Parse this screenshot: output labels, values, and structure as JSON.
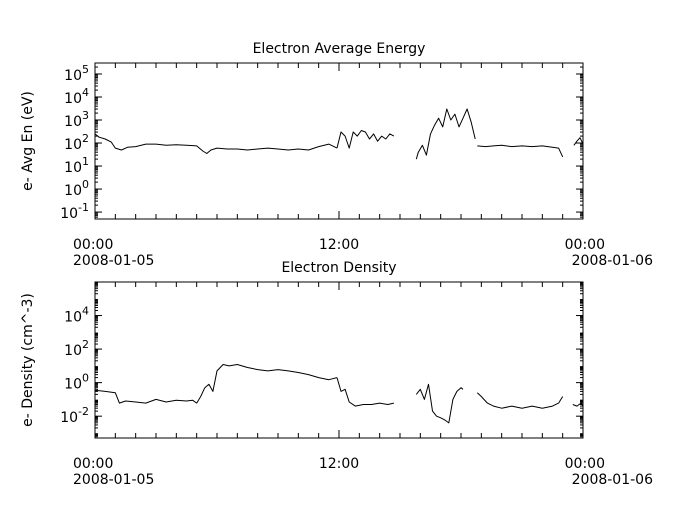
{
  "chart_data": [
    {
      "type": "line",
      "title": "Electron Average Energy",
      "ylabel": "e- Avg En (eV)",
      "yscale": "log",
      "ylim": [
        0.05,
        300000
      ],
      "y_ticks": [
        {
          "value": 0.1,
          "base": "10",
          "exp": "-1"
        },
        {
          "value": 1,
          "base": "10",
          "exp": "0"
        },
        {
          "value": 10,
          "base": "10",
          "exp": "1"
        },
        {
          "value": 100,
          "base": "10",
          "exp": "2"
        },
        {
          "value": 1000,
          "base": "10",
          "exp": "3"
        },
        {
          "value": 10000,
          "base": "10",
          "exp": "4"
        },
        {
          "value": 100000,
          "base": "10",
          "exp": "5"
        }
      ],
      "xlim": [
        0,
        24
      ],
      "x_ticks": [
        {
          "value": 0,
          "time": "00:00",
          "date": "2008-01-05"
        },
        {
          "value": 12,
          "time": "12:00",
          "date": ""
        },
        {
          "value": 24,
          "time": "00:00",
          "date": "2008-01-06"
        }
      ],
      "series": [
        {
          "x": [
            0,
            0.2,
            0.5,
            0.8,
            1.0,
            1.3,
            1.6,
            2.0,
            2.5,
            3.0,
            3.5,
            4.0,
            4.5,
            5.0,
            5.3,
            5.5,
            5.7,
            6.0,
            6.5,
            7.0,
            7.5,
            8.0,
            8.5,
            9.0,
            9.5,
            10.0,
            10.5,
            11.0,
            11.5,
            11.9
          ],
          "y": [
            250,
            180,
            150,
            110,
            60,
            50,
            65,
            70,
            90,
            90,
            80,
            85,
            80,
            75,
            45,
            35,
            50,
            60,
            55,
            55,
            50,
            55,
            60,
            55,
            50,
            55,
            50,
            70,
            90,
            60
          ]
        },
        {
          "x": [
            11.9,
            12.1,
            12.3,
            12.5,
            12.7,
            12.9,
            13.1,
            13.3,
            13.5,
            13.7,
            13.9,
            14.1,
            14.3,
            14.5,
            14.7
          ],
          "y": [
            60,
            300,
            200,
            60,
            300,
            200,
            350,
            300,
            150,
            250,
            120,
            200,
            150,
            250,
            200
          ]
        },
        {
          "x": [
            15.8,
            15.9,
            16.1,
            16.3,
            16.5,
            16.7,
            16.9,
            17.1,
            17.3,
            17.5,
            17.7,
            17.9,
            18.1,
            18.3,
            18.5,
            18.7
          ],
          "y": [
            20,
            40,
            80,
            30,
            250,
            600,
            1200,
            500,
            3000,
            1000,
            1800,
            500,
            1200,
            3000,
            800,
            150
          ]
        },
        {
          "x": [
            18.8,
            19.2,
            19.6,
            20.0,
            20.5,
            21.0,
            21.5,
            22.0,
            22.5,
            22.8,
            23.0
          ],
          "y": [
            75,
            70,
            75,
            80,
            70,
            75,
            70,
            75,
            65,
            60,
            25
          ]
        },
        {
          "x": [
            23.55,
            23.7,
            23.85,
            24.0
          ],
          "y": [
            80,
            120,
            170,
            90
          ]
        }
      ]
    },
    {
      "type": "line",
      "title": "Electron Density",
      "ylabel": "e- Density (cm^-3)",
      "yscale": "log",
      "ylim": [
        0.0005,
        1000000
      ],
      "y_ticks": [
        {
          "value": 0.01,
          "base": "10",
          "exp": "-2"
        },
        {
          "value": 1,
          "base": "10",
          "exp": "0"
        },
        {
          "value": 100,
          "base": "10",
          "exp": "2"
        },
        {
          "value": 10000,
          "base": "10",
          "exp": "4"
        }
      ],
      "xlim": [
        0,
        24
      ],
      "x_ticks": [
        {
          "value": 0,
          "time": "00:00",
          "date": "2008-01-05"
        },
        {
          "value": 12,
          "time": "12:00",
          "date": ""
        },
        {
          "value": 24,
          "time": "00:00",
          "date": "2008-01-06"
        }
      ],
      "series": [
        {
          "x": [
            0,
            0.5,
            1.0,
            1.2,
            1.5,
            2.0,
            2.5,
            3.0,
            3.5,
            4.0,
            4.5,
            4.8,
            5.0,
            5.2,
            5.4,
            5.6,
            5.8,
            6.0,
            6.3,
            6.6,
            7.0,
            7.5,
            8.0,
            8.5,
            9.0,
            9.5,
            10.0,
            10.5,
            11.0,
            11.5,
            11.9
          ],
          "y": [
            0.35,
            0.3,
            0.25,
            0.06,
            0.08,
            0.07,
            0.06,
            0.1,
            0.07,
            0.09,
            0.08,
            0.09,
            0.06,
            0.15,
            0.5,
            0.8,
            0.3,
            5,
            12,
            10,
            12,
            8,
            6,
            5,
            6,
            5,
            4,
            3,
            2,
            1.5,
            2
          ]
        },
        {
          "x": [
            11.9,
            12.1,
            12.3,
            12.5,
            12.8,
            13.2,
            13.6,
            14.0,
            14.4,
            14.7
          ],
          "y": [
            2,
            0.3,
            0.4,
            0.07,
            0.04,
            0.05,
            0.05,
            0.06,
            0.05,
            0.06
          ]
        },
        {
          "x": [
            15.8,
            16.0,
            16.2,
            16.4,
            16.6,
            16.8,
            17.0,
            17.2,
            17.4,
            17.6,
            17.8,
            18.0,
            18.1
          ],
          "y": [
            0.2,
            0.4,
            0.1,
            0.8,
            0.02,
            0.01,
            0.008,
            0.006,
            0.004,
            0.1,
            0.3,
            0.5,
            0.4
          ]
        },
        {
          "x": [
            18.8,
            19.0,
            19.3,
            19.6,
            20.0,
            20.5,
            21.0,
            21.5,
            22.0,
            22.5,
            22.8,
            23.0
          ],
          "y": [
            0.25,
            0.15,
            0.06,
            0.04,
            0.03,
            0.04,
            0.03,
            0.04,
            0.03,
            0.04,
            0.06,
            0.15
          ]
        },
        {
          "x": [
            23.5,
            23.7,
            23.9,
            24.0
          ],
          "y": [
            0.05,
            0.04,
            0.06,
            0.04
          ]
        }
      ]
    }
  ]
}
